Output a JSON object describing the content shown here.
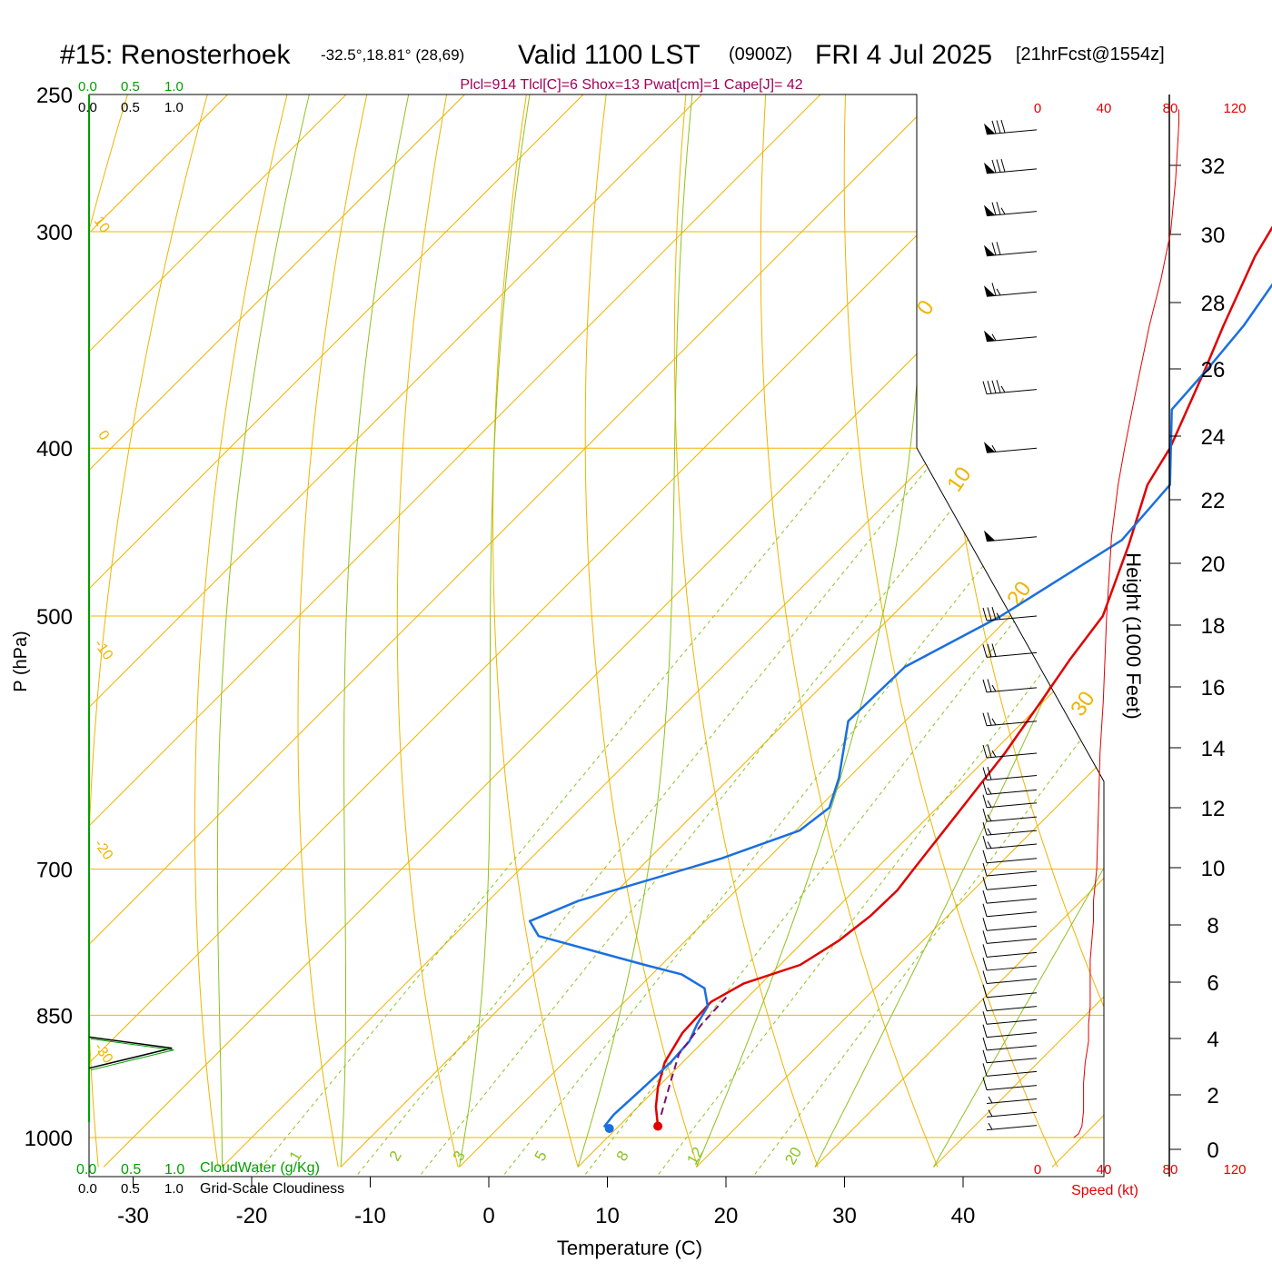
{
  "header": {
    "station": "#15: Renosterhoek",
    "coords": "-32.5°,18.81° (28,69)",
    "valid": "Valid 1100 LST",
    "zulu": "(0900Z)",
    "date": "FRI 4 Jul 2025",
    "forecast": "[21hrFcst@1554z]",
    "indices": "Plcl=914 Tlcl[C]=6 Shox=13 Pwat[cm]=1 Cape[J]= 42"
  },
  "colors": {
    "temperature": "#e00000",
    "dewpoint": "#1a6fe0",
    "isotherm": "#f0b400",
    "adiabat": "#8cc21e",
    "mixing_ratio": "#8cc21e",
    "parcel": "#7a1070",
    "cloud_scale": "#00a000",
    "speed": "#e00000",
    "indices": "#a0005a"
  },
  "cloud_scale": {
    "water_ticks": [
      "0.0",
      "0.5",
      "1.0"
    ],
    "cover_ticks": [
      "0.0",
      "0.5",
      "1.0"
    ],
    "water_label": "CloudWater (g/Kg)",
    "cover_label": "Grid-Scale Cloudiness"
  },
  "speed_axis": {
    "ticks": [
      "0",
      "40",
      "80",
      "120"
    ],
    "label": "Speed (kt)"
  },
  "chart_data": {
    "type": "line",
    "xlabel": "Temperature (C)",
    "ylabel": "P (hPa)",
    "y2label": "Height (1000 Feet)",
    "x_ticks": [
      "-30",
      "-20",
      "-10",
      "0",
      "10",
      "20",
      "30",
      "40"
    ],
    "y_ticks": [
      "250",
      "300",
      "400",
      "500",
      "700",
      "850",
      "1000"
    ],
    "height_ticks": [
      "0",
      "2",
      "4",
      "6",
      "8",
      "10",
      "12",
      "14",
      "16",
      "18",
      "20",
      "22",
      "24",
      "26",
      "28",
      "30",
      "32"
    ],
    "isotherm_labels": [
      "10",
      "0",
      "-10",
      "-20",
      "-30",
      "0",
      "10",
      "20",
      "30"
    ],
    "mixing_ratio_labels": [
      "1",
      "2",
      "3",
      "5",
      "8",
      "12",
      "20"
    ],
    "y_scale": "log",
    "series": [
      {
        "key": "temperature",
        "points": [
          [
            13.3,
            985
          ],
          [
            11.5,
            960
          ],
          [
            10.0,
            935
          ],
          [
            8.5,
            905
          ],
          [
            7.5,
            870
          ],
          [
            7.3,
            835
          ],
          [
            8.5,
            815
          ],
          [
            11.7,
            795
          ],
          [
            12.9,
            770
          ],
          [
            13.5,
            745
          ],
          [
            13.6,
            720
          ],
          [
            13.2,
            700
          ],
          [
            12.2,
            650
          ],
          [
            11.1,
            600
          ],
          [
            9.8,
            560
          ],
          [
            8.7,
            530
          ],
          [
            7.8,
            500
          ],
          [
            4.0,
            455
          ],
          [
            0.5,
            420
          ],
          [
            -0.7,
            400
          ],
          [
            -4.4,
            360
          ],
          [
            -6.5,
            340
          ],
          [
            -9.7,
            310
          ],
          [
            -11.4,
            290
          ],
          [
            -11.9,
            280
          ],
          [
            -12.6,
            260
          ]
        ]
      },
      {
        "key": "dewpoint",
        "points": [
          [
            9.4,
            988
          ],
          [
            8.8,
            985
          ],
          [
            8.6,
            970
          ],
          [
            8.8,
            940
          ],
          [
            9.0,
            905
          ],
          [
            8.8,
            880
          ],
          [
            8.0,
            860
          ],
          [
            7.4,
            840
          ],
          [
            5.6,
            820
          ],
          [
            2.5,
            805
          ],
          [
            -1.4,
            795
          ],
          [
            -12.8,
            765
          ],
          [
            -14.8,
            750
          ],
          [
            -12.4,
            730
          ],
          [
            -3.9,
            690
          ],
          [
            0.3,
            665
          ],
          [
            0.9,
            645
          ],
          [
            -0.8,
            620
          ],
          [
            -4.8,
            575
          ],
          [
            -4.6,
            535
          ],
          [
            -0.8,
            500
          ],
          [
            3.0,
            452
          ],
          [
            2.4,
            420
          ],
          [
            -3.8,
            380
          ],
          [
            -4.2,
            360
          ],
          [
            -4.8,
            340
          ],
          [
            -7.2,
            300
          ],
          [
            -9.7,
            280
          ],
          [
            -12.1,
            260
          ]
        ]
      },
      {
        "key": "parcel",
        "points": [
          [
            12.6,
            970
          ],
          [
            10.7,
            930
          ],
          [
            9.0,
            895
          ],
          [
            8.4,
            860
          ],
          [
            8.2,
            830
          ]
        ]
      }
    ],
    "wind_barbs": [
      {
        "p": 984,
        "speed": 5
      },
      {
        "p": 967,
        "speed": 5
      },
      {
        "p": 950,
        "speed": 5
      },
      {
        "p": 933,
        "speed": 10
      },
      {
        "p": 916,
        "speed": 10
      },
      {
        "p": 900,
        "speed": 10
      },
      {
        "p": 885,
        "speed": 10
      },
      {
        "p": 870,
        "speed": 10
      },
      {
        "p": 855,
        "speed": 10
      },
      {
        "p": 840,
        "speed": 10
      },
      {
        "p": 825,
        "speed": 10
      },
      {
        "p": 810,
        "speed": 10
      },
      {
        "p": 796,
        "speed": 10
      },
      {
        "p": 782,
        "speed": 10
      },
      {
        "p": 768,
        "speed": 10
      },
      {
        "p": 755,
        "speed": 10
      },
      {
        "p": 741,
        "speed": 10
      },
      {
        "p": 728,
        "speed": 10
      },
      {
        "p": 715,
        "speed": 10
      },
      {
        "p": 702,
        "speed": 10
      },
      {
        "p": 690,
        "speed": 10
      },
      {
        "p": 677,
        "speed": 15
      },
      {
        "p": 665,
        "speed": 15
      },
      {
        "p": 653,
        "speed": 15
      },
      {
        "p": 641,
        "speed": 15
      },
      {
        "p": 630,
        "speed": 15
      },
      {
        "p": 618,
        "speed": 20
      },
      {
        "p": 600,
        "speed": 25
      },
      {
        "p": 575,
        "speed": 25
      },
      {
        "p": 550,
        "speed": 25
      },
      {
        "p": 525,
        "speed": 30
      },
      {
        "p": 500,
        "speed": 35
      },
      {
        "p": 450,
        "speed": 50
      },
      {
        "p": 400,
        "speed": 55
      },
      {
        "p": 370,
        "speed": 45
      },
      {
        "p": 345,
        "speed": 55
      },
      {
        "p": 325,
        "speed": 65
      },
      {
        "p": 308,
        "speed": 70
      },
      {
        "p": 292,
        "speed": 75
      },
      {
        "p": 276,
        "speed": 80
      },
      {
        "p": 262,
        "speed": 80
      }
    ],
    "speed_profile": [
      [
        22,
        1000
      ],
      [
        25,
        995
      ],
      [
        27,
        985
      ],
      [
        28,
        965
      ],
      [
        28,
        930
      ],
      [
        29,
        905
      ],
      [
        31,
        880
      ],
      [
        31,
        860
      ],
      [
        32,
        840
      ],
      [
        32,
        810
      ],
      [
        32,
        790
      ],
      [
        33,
        770
      ],
      [
        34,
        750
      ],
      [
        34,
        730
      ],
      [
        36,
        700
      ],
      [
        37,
        650
      ],
      [
        38,
        600
      ],
      [
        40,
        560
      ],
      [
        42,
        500
      ],
      [
        45,
        450
      ],
      [
        49,
        420
      ],
      [
        53,
        400
      ],
      [
        60,
        370
      ],
      [
        68,
        340
      ],
      [
        75,
        320
      ],
      [
        81,
        300
      ],
      [
        84,
        280
      ],
      [
        86,
        260
      ],
      [
        86,
        255
      ]
    ],
    "cloud_cover": [
      [
        0.0,
        875
      ],
      [
        0.73,
        888
      ],
      [
        0.0,
        912
      ]
    ]
  }
}
